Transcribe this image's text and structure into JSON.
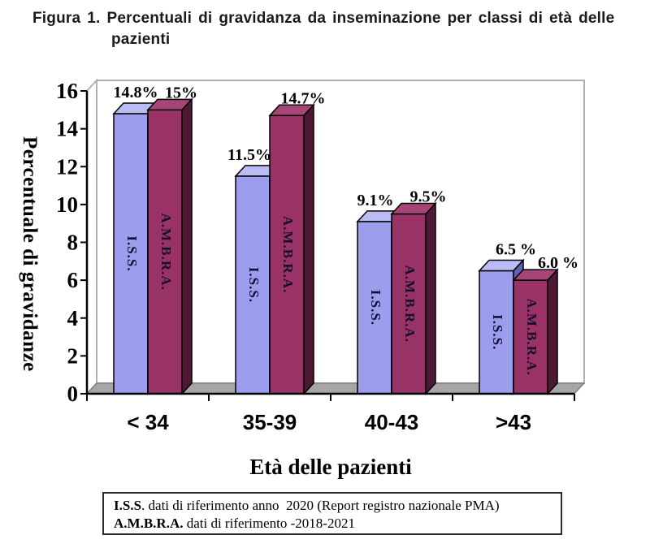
{
  "title": {
    "line1": "Figura 1. Percentuali di gravidanza da inseminazione per classi di età delle",
    "line2": "pazienti"
  },
  "chart_data": {
    "type": "bar",
    "style": "3d-column",
    "title": "Percentuali di gravidanza da inseminazione per classi di età delle pazienti",
    "categories": [
      "< 34",
      "35-39",
      "40-43",
      ">43"
    ],
    "series": [
      {
        "name": "I.S.S.",
        "values": [
          14.8,
          11.5,
          9.1,
          6.5
        ],
        "value_labels": [
          "14.8%",
          "11.5%",
          "9.1%",
          "6.5 %"
        ],
        "colors": {
          "front": "#9D9DEE",
          "top": "#BCBCF4",
          "side": "#6060B0"
        }
      },
      {
        "name": "A.M.B.R.A.",
        "values": [
          15,
          14.7,
          9.5,
          6.0
        ],
        "value_labels": [
          "15%",
          "14.7%",
          "9.5%",
          "6.0 %"
        ],
        "colors": {
          "front": "#993366",
          "top": "#A84578",
          "side": "#4E1834"
        }
      }
    ],
    "xlabel": "Età delle pazienti",
    "ylabel": "Percentuale di gravidanze",
    "yticks": [
      0,
      2,
      4,
      6,
      8,
      10,
      12,
      14,
      16
    ],
    "ylim": [
      0,
      16
    ],
    "grid": false,
    "legend": "labels-inside-bars",
    "bar_label_color": "#10102E",
    "axis_color": "#000000",
    "wall_color": "#FFFFFF",
    "wall_border_color": "#B0B0B0",
    "floor_color": "#A6A6A6"
  },
  "footer": {
    "line1_bold": "I.S.S",
    "line1_rest": ". dati di riferimento anno  2020 (Report registro nazionale PMA)",
    "line2_bold": "A.M.B.R.A.",
    "line2_rest": " dati di riferimento -2018-2021"
  }
}
